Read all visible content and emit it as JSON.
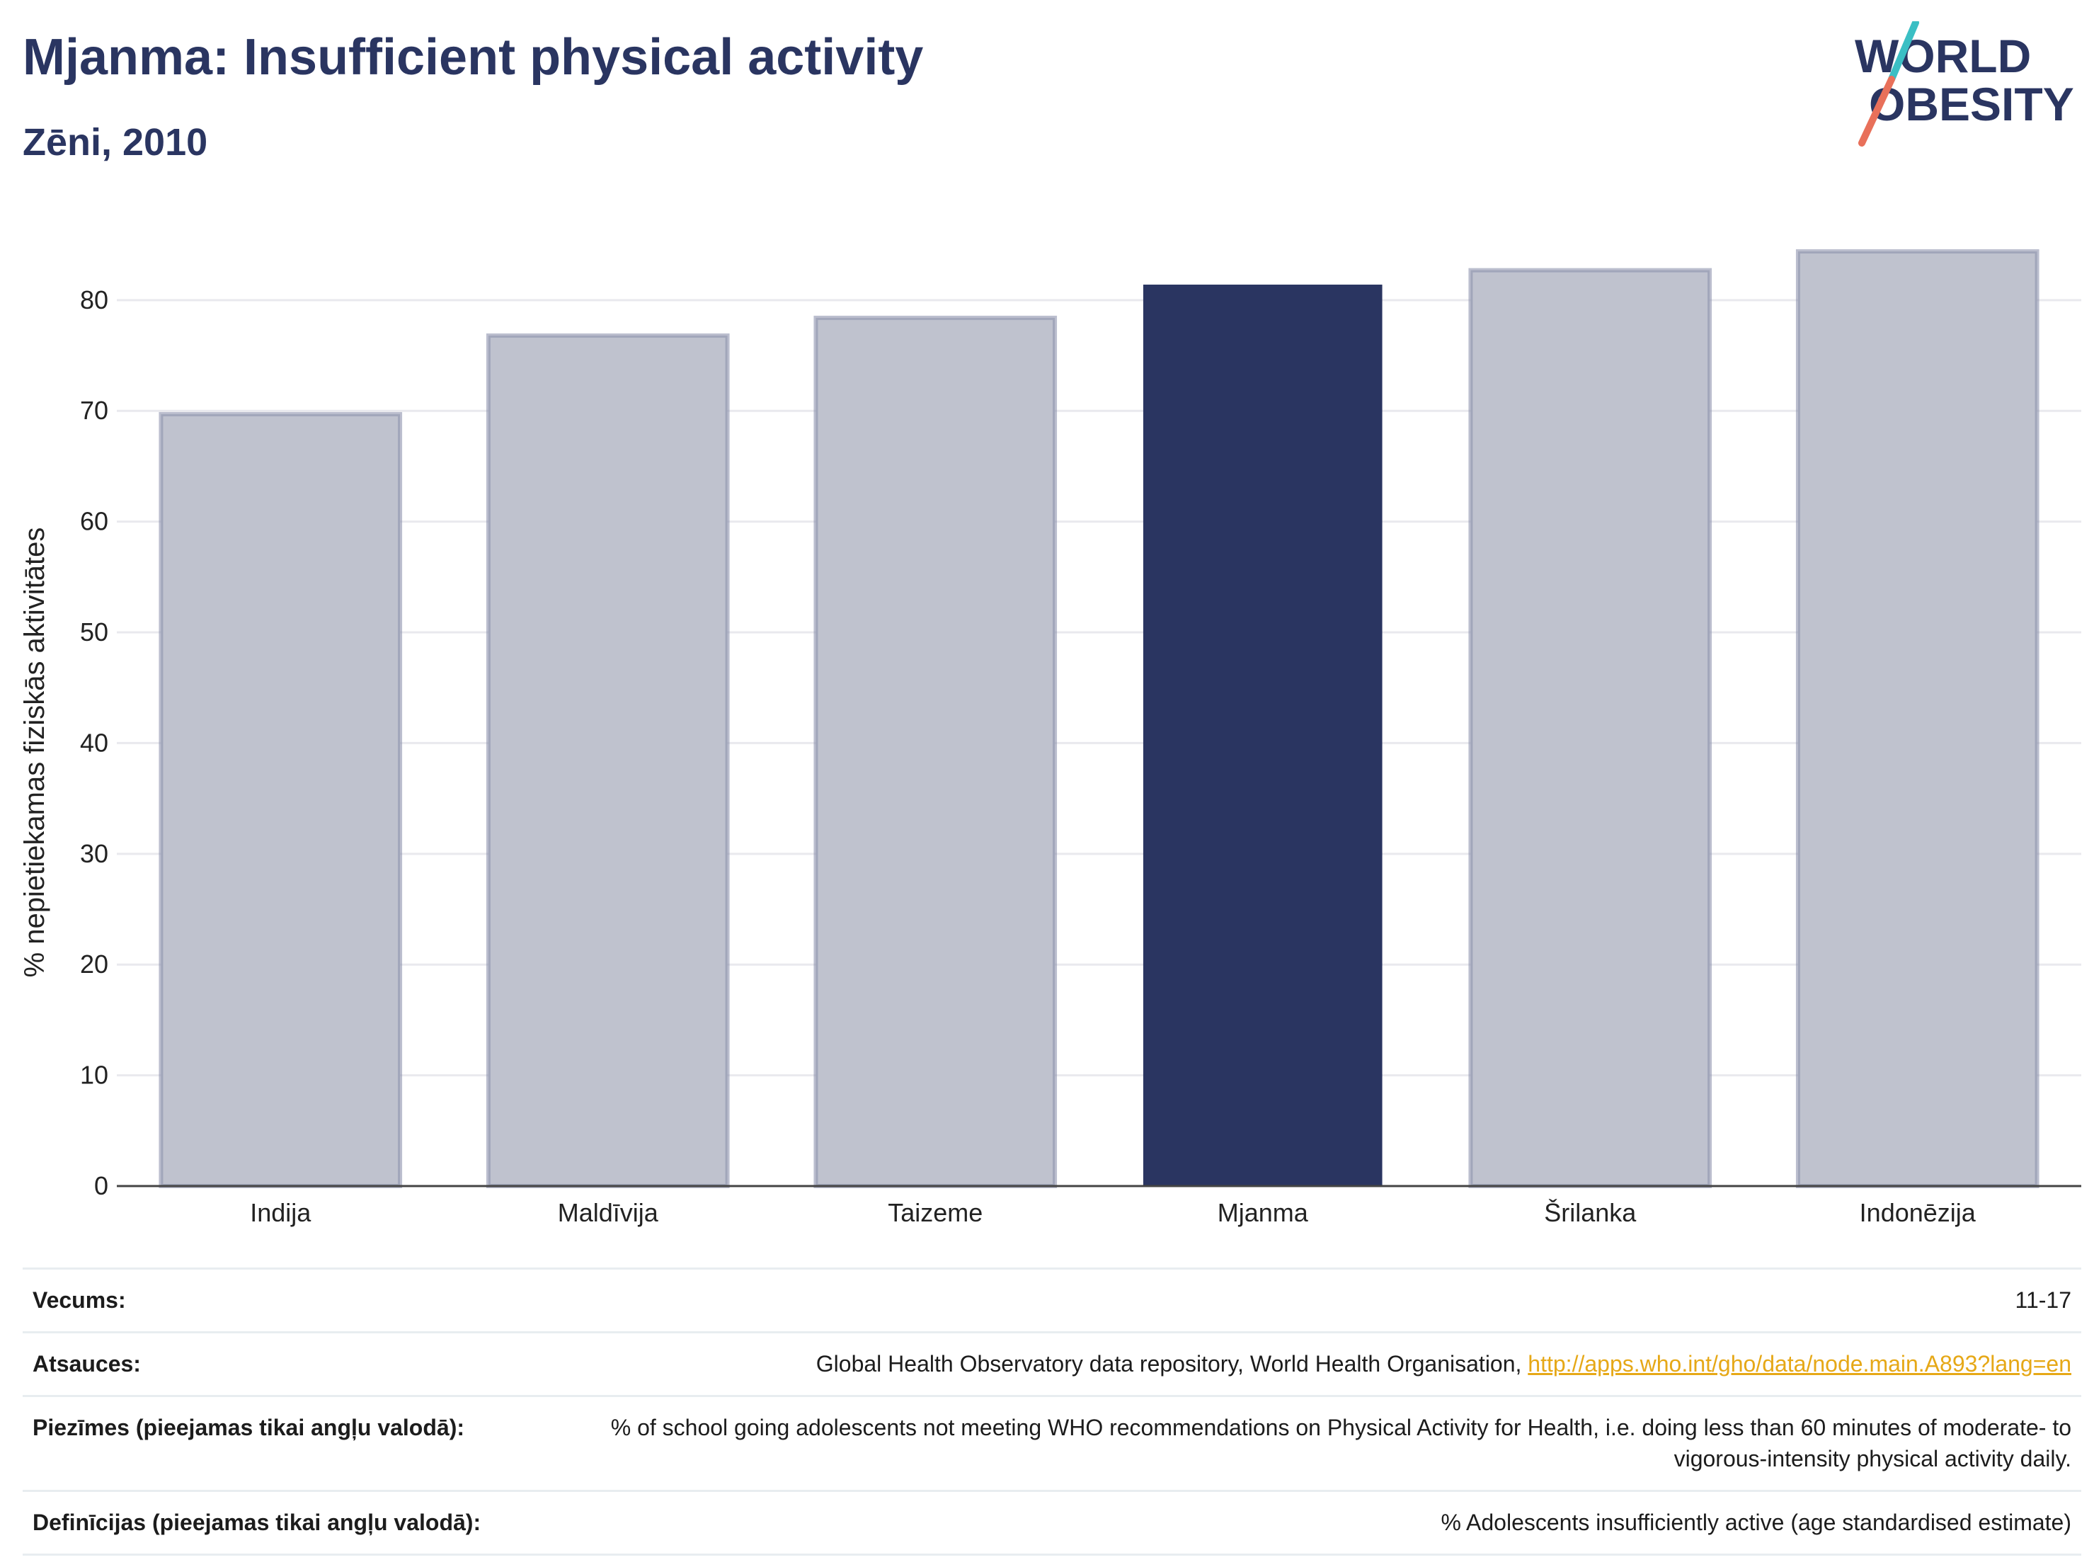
{
  "header": {
    "title": "Mjanma: Insufficient physical activity",
    "subtitle": "Zēni, 2010"
  },
  "logo": {
    "line1": "WORLD",
    "line2": "OBESITY",
    "colors": {
      "text": "#2a3561",
      "slash_teal": "#3bbfc4",
      "slash_coral": "#e8705a"
    }
  },
  "chart_data": {
    "type": "bar",
    "categories": [
      "Indija",
      "Maldīvija",
      "Taizeme",
      "Mjanma",
      "Šrilanka",
      "Indonēzija"
    ],
    "values": [
      69.7,
      76.8,
      78.4,
      81.4,
      82.7,
      84.4
    ],
    "highlight": "Mjanma",
    "ylabel": "% nepietiekamas fiziskās aktivitātes",
    "xlabel": "",
    "ylim": [
      0,
      86
    ],
    "yticks": [
      0,
      10,
      20,
      30,
      40,
      50,
      60,
      70,
      80
    ],
    "grid": true,
    "colors": {
      "bar": "#bfc2ce",
      "bar_border": "#8e93ad",
      "highlight": "#2a3561",
      "grid": "#e9e9ee",
      "axis": "#444444"
    }
  },
  "info": {
    "age_label": "Vecums:",
    "age_value": "11-17",
    "sources_label": "Atsauces:",
    "sources_text": "Global Health Observatory data repository, World Health Organisation, ",
    "sources_link": "http://apps.who.int/gho/data/node.main.A893?lang=en",
    "notes_label": "Piezīmes (pieejamas tikai angļu valodā):",
    "notes_text": "% of school going adolescents not meeting WHO recommendations on Physical Activity for Health, i.e. doing less than 60 minutes of moderate- to vigorous-intensity physical activity daily.",
    "definitions_label": "Definīcijas (pieejamas tikai angļu valodā):",
    "definitions_text": "% Adolescents insufficiently active (age standardised estimate)"
  }
}
